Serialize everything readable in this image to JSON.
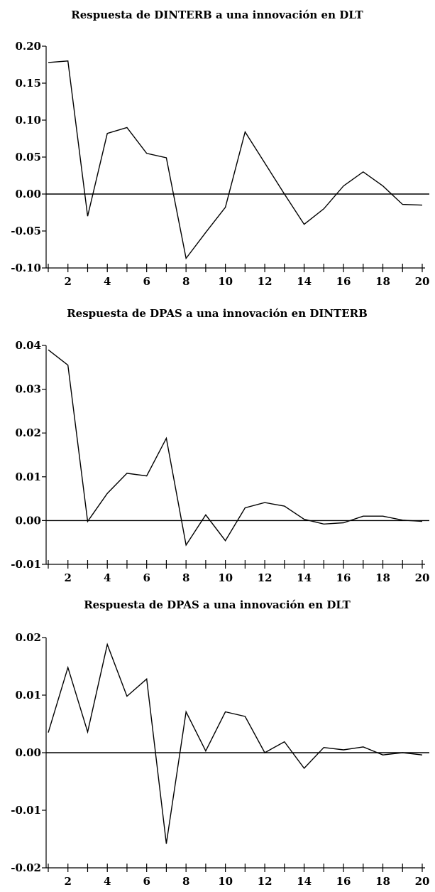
{
  "chart_data": [
    {
      "type": "line",
      "title": "Respuesta de DINTERB a una innovación en DLT",
      "x": [
        1,
        2,
        3,
        4,
        5,
        6,
        7,
        8,
        9,
        10,
        11,
        12,
        13,
        14,
        15,
        16,
        17,
        18,
        19,
        20
      ],
      "series": [
        {
          "values": [
            0.178,
            0.18,
            -0.03,
            0.082,
            0.09,
            0.055,
            0.049,
            -0.087,
            -0.052,
            -0.018,
            0.084,
            0.042,
            0.0,
            -0.041,
            -0.02,
            0.011,
            0.03,
            0.011,
            -0.014,
            -0.015
          ]
        }
      ],
      "ylim": [
        -0.1,
        0.2
      ],
      "yticks": [
        "0.20",
        "0.15",
        "0.10",
        "0.05",
        "0.00",
        "-0.05",
        "-0.10"
      ],
      "xticks": [
        "2",
        "4",
        "6",
        "8",
        "10",
        "12",
        "14",
        "16",
        "18",
        "20"
      ],
      "grid": false
    },
    {
      "type": "line",
      "title": "Respuesta de DPAS a una innovación en DINTERB",
      "x": [
        1,
        2,
        3,
        4,
        5,
        6,
        7,
        8,
        9,
        10,
        11,
        12,
        13,
        14,
        15,
        16,
        17,
        18,
        19,
        20
      ],
      "series": [
        {
          "values": [
            0.039,
            0.0355,
            -0.0002,
            0.0062,
            0.0108,
            0.0102,
            0.0188,
            -0.0056,
            0.0013,
            -0.0046,
            0.0029,
            0.0041,
            0.0033,
            0.0003,
            -0.0008,
            -0.0005,
            0.001,
            0.001,
            0.0001,
            -0.0002
          ]
        }
      ],
      "ylim": [
        -0.01,
        0.04
      ],
      "yticks": [
        "0.04",
        "0.03",
        "0.02",
        "0.01",
        "0.00",
        "-0.01"
      ],
      "xticks": [
        "2",
        "4",
        "6",
        "8",
        "10",
        "12",
        "14",
        "16",
        "18",
        "20"
      ],
      "grid": false
    },
    {
      "type": "line",
      "title": "Respuesta de DPAS a una innovación en DLT",
      "x": [
        1,
        2,
        3,
        4,
        5,
        6,
        7,
        8,
        9,
        10,
        11,
        12,
        13,
        14,
        15,
        16,
        17,
        18,
        19,
        20
      ],
      "series": [
        {
          "values": [
            0.0035,
            0.0148,
            0.0036,
            0.0188,
            0.0098,
            0.0128,
            -0.0158,
            0.0071,
            0.0003,
            0.0071,
            0.0063,
            0.0,
            0.0019,
            -0.0027,
            0.0009,
            0.0005,
            0.001,
            -0.0004,
            0.0,
            -0.0004
          ]
        }
      ],
      "ylim": [
        -0.02,
        0.02
      ],
      "yticks": [
        "0.02",
        "0.01",
        "0.00",
        "-0.01",
        "-0.02"
      ],
      "xticks": [
        "2",
        "4",
        "6",
        "8",
        "10",
        "12",
        "14",
        "16",
        "18",
        "20"
      ],
      "grid": false
    }
  ]
}
